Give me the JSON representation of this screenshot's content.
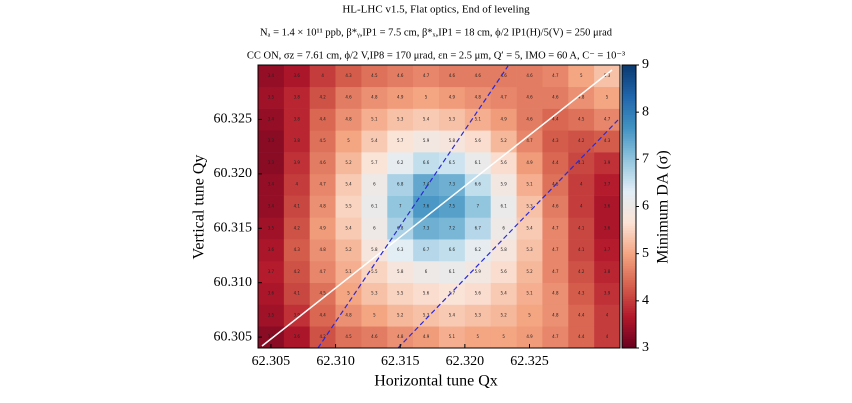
{
  "chart_data": {
    "type": "heatmap",
    "title": "HL-LHC v1.5, Flat optics, End of leveling",
    "subtitle": "Nₐ = 1.4 × 10¹¹ ppb, β*ᵧ,IP1 = 7.5 cm, β*ₓ,IP1 = 18 cm, ϕ/2 IP1(H)/5(V) = 250 μrad",
    "subtitle2": "CC ON, σz = 7.61 cm, ϕ/2 V,IP8 = 170 μrad, εn = 2.5 μm, Q′ = 5, IMO = 60 A, C⁻ = 10⁻³",
    "x_label": "Horizontal tune Qx",
    "y_label": "Vertical tune Qy",
    "colorbar_label": "Minimum DA (σ)",
    "x": [
      62.305,
      62.307,
      62.309,
      62.311,
      62.313,
      62.315,
      62.317,
      62.319,
      62.321,
      62.323,
      62.325,
      62.327,
      62.329,
      62.331
    ],
    "y": [
      60.305,
      60.307,
      60.309,
      60.311,
      60.313,
      60.315,
      60.317,
      60.319,
      60.321,
      60.323,
      60.325,
      60.327,
      60.329
    ],
    "values": [
      [
        3.3,
        3.6,
        4.2,
        4.5,
        4.6,
        4.8,
        4.9,
        5.1,
        5.0,
        5.0,
        4.9,
        4.7,
        4.4,
        4.0
      ],
      [
        3.5,
        3.9,
        4.4,
        4.8,
        5.0,
        5.2,
        5.3,
        5.4,
        5.3,
        5.2,
        5.0,
        4.8,
        4.4,
        4.0
      ],
      [
        3.6,
        4.1,
        4.5,
        5.0,
        5.3,
        5.5,
        5.6,
        5.7,
        5.6,
        5.4,
        5.1,
        4.8,
        4.3,
        3.9
      ],
      [
        3.7,
        4.2,
        4.7,
        5.1,
        5.5,
        5.8,
        6.0,
        6.1,
        5.9,
        5.6,
        5.2,
        4.7,
        4.2,
        3.8
      ],
      [
        3.6,
        4.3,
        4.8,
        5.2,
        5.8,
        6.3,
        6.7,
        6.6,
        6.2,
        5.8,
        5.3,
        4.7,
        4.1,
        3.7
      ],
      [
        3.5,
        4.2,
        4.9,
        5.4,
        6.0,
        6.8,
        7.3,
        7.2,
        6.7,
        6.0,
        5.4,
        4.7,
        4.1,
        3.6
      ],
      [
        3.4,
        4.1,
        4.8,
        5.5,
        6.1,
        7.0,
        7.6,
        7.5,
        7.0,
        6.1,
        5.3,
        4.6,
        4.0,
        3.6
      ],
      [
        3.4,
        4.0,
        4.7,
        5.4,
        6.0,
        6.8,
        7.4,
        7.3,
        6.6,
        5.9,
        5.1,
        4.5,
        4.0,
        3.7
      ],
      [
        3.3,
        3.9,
        4.6,
        5.2,
        5.7,
        6.2,
        6.6,
        6.5,
        6.1,
        5.6,
        4.9,
        4.4,
        4.1,
        3.9
      ],
      [
        3.3,
        3.8,
        4.5,
        5.0,
        5.4,
        5.7,
        5.9,
        5.8,
        5.6,
        5.2,
        4.7,
        4.3,
        4.2,
        4.3
      ],
      [
        3.4,
        3.8,
        4.4,
        4.8,
        5.1,
        5.3,
        5.4,
        5.3,
        5.1,
        4.9,
        4.6,
        4.4,
        4.5,
        4.7
      ],
      [
        3.5,
        3.8,
        4.2,
        4.6,
        4.8,
        4.9,
        5.0,
        4.9,
        4.8,
        4.7,
        4.6,
        4.6,
        4.8,
        5.0
      ],
      [
        3.4,
        3.6,
        4.0,
        4.3,
        4.5,
        4.6,
        4.7,
        4.6,
        4.6,
        4.6,
        4.6,
        4.7,
        5.0,
        5.3
      ]
    ],
    "xlim": [
      62.304,
      62.332
    ],
    "ylim": [
      60.304,
      60.33
    ],
    "xticks": [
      62.305,
      {
        "value": 62.31,
        "label": "62.310"
      },
      62.315,
      {
        "value": 62.32,
        "label": "62.320"
      },
      62.325
    ],
    "yticks": [
      60.305,
      {
        "value": 60.31,
        "label": "60.310"
      },
      60.315,
      {
        "value": 60.32,
        "label": "60.320"
      },
      60.325
    ],
    "clim": [
      3,
      9
    ],
    "cticks": [
      3,
      4,
      5,
      6,
      7,
      8,
      9
    ],
    "colors": [
      "#67001f",
      "#b2182b",
      "#d6604d",
      "#f4a582",
      "#fbe3d6",
      "#e1eef6",
      "#92c5de",
      "#4393c3",
      "#2166ac",
      "#0b3a70"
    ]
  }
}
